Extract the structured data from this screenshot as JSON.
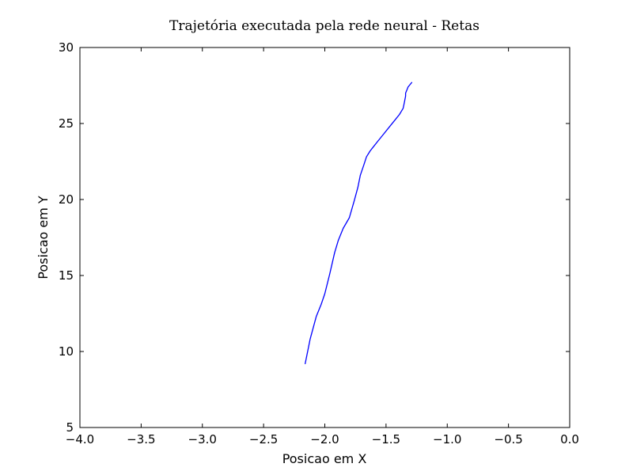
{
  "chart_data": {
    "type": "line",
    "title": "Trajetória executada pela rede neural - Retas",
    "xlabel": "Posicao em X",
    "ylabel": "Posicao em Y",
    "xlim": [
      -4.0,
      0.0
    ],
    "ylim": [
      5,
      30
    ],
    "xticks": [
      -4.0,
      -3.5,
      -3.0,
      -2.5,
      -2.0,
      -1.5,
      -1.0,
      -0.5,
      0.0
    ],
    "xtick_labels": [
      "−4.0",
      "−3.5",
      "−3.0",
      "−2.5",
      "−2.0",
      "−1.5",
      "−1.0",
      "−0.5",
      "0.0"
    ],
    "yticks": [
      5,
      10,
      15,
      20,
      25,
      30
    ],
    "ytick_labels": [
      "5",
      "10",
      "15",
      "20",
      "25",
      "30"
    ],
    "grid": false,
    "series": [
      {
        "color": "#0000ff",
        "x": [
          -2.16,
          -2.12,
          -2.07,
          -2.03,
          -2.0,
          -1.96,
          -1.92,
          -1.89,
          -1.85,
          -1.8,
          -1.76,
          -1.73,
          -1.71,
          -1.68,
          -1.66,
          -1.63,
          -1.6,
          -1.57,
          -1.52,
          -1.47,
          -1.43,
          -1.39,
          -1.36,
          -1.35,
          -1.34,
          -1.34,
          -1.33,
          -1.32,
          -1.3,
          -1.29
        ],
        "y": [
          9.2,
          10.8,
          12.3,
          13.1,
          13.8,
          15.1,
          16.5,
          17.3,
          18.1,
          18.8,
          19.9,
          20.8,
          21.6,
          22.3,
          22.8,
          23.2,
          23.5,
          23.8,
          24.3,
          24.8,
          25.2,
          25.6,
          26.0,
          26.4,
          26.8,
          27.0,
          27.2,
          27.4,
          27.6,
          27.7
        ]
      }
    ]
  }
}
